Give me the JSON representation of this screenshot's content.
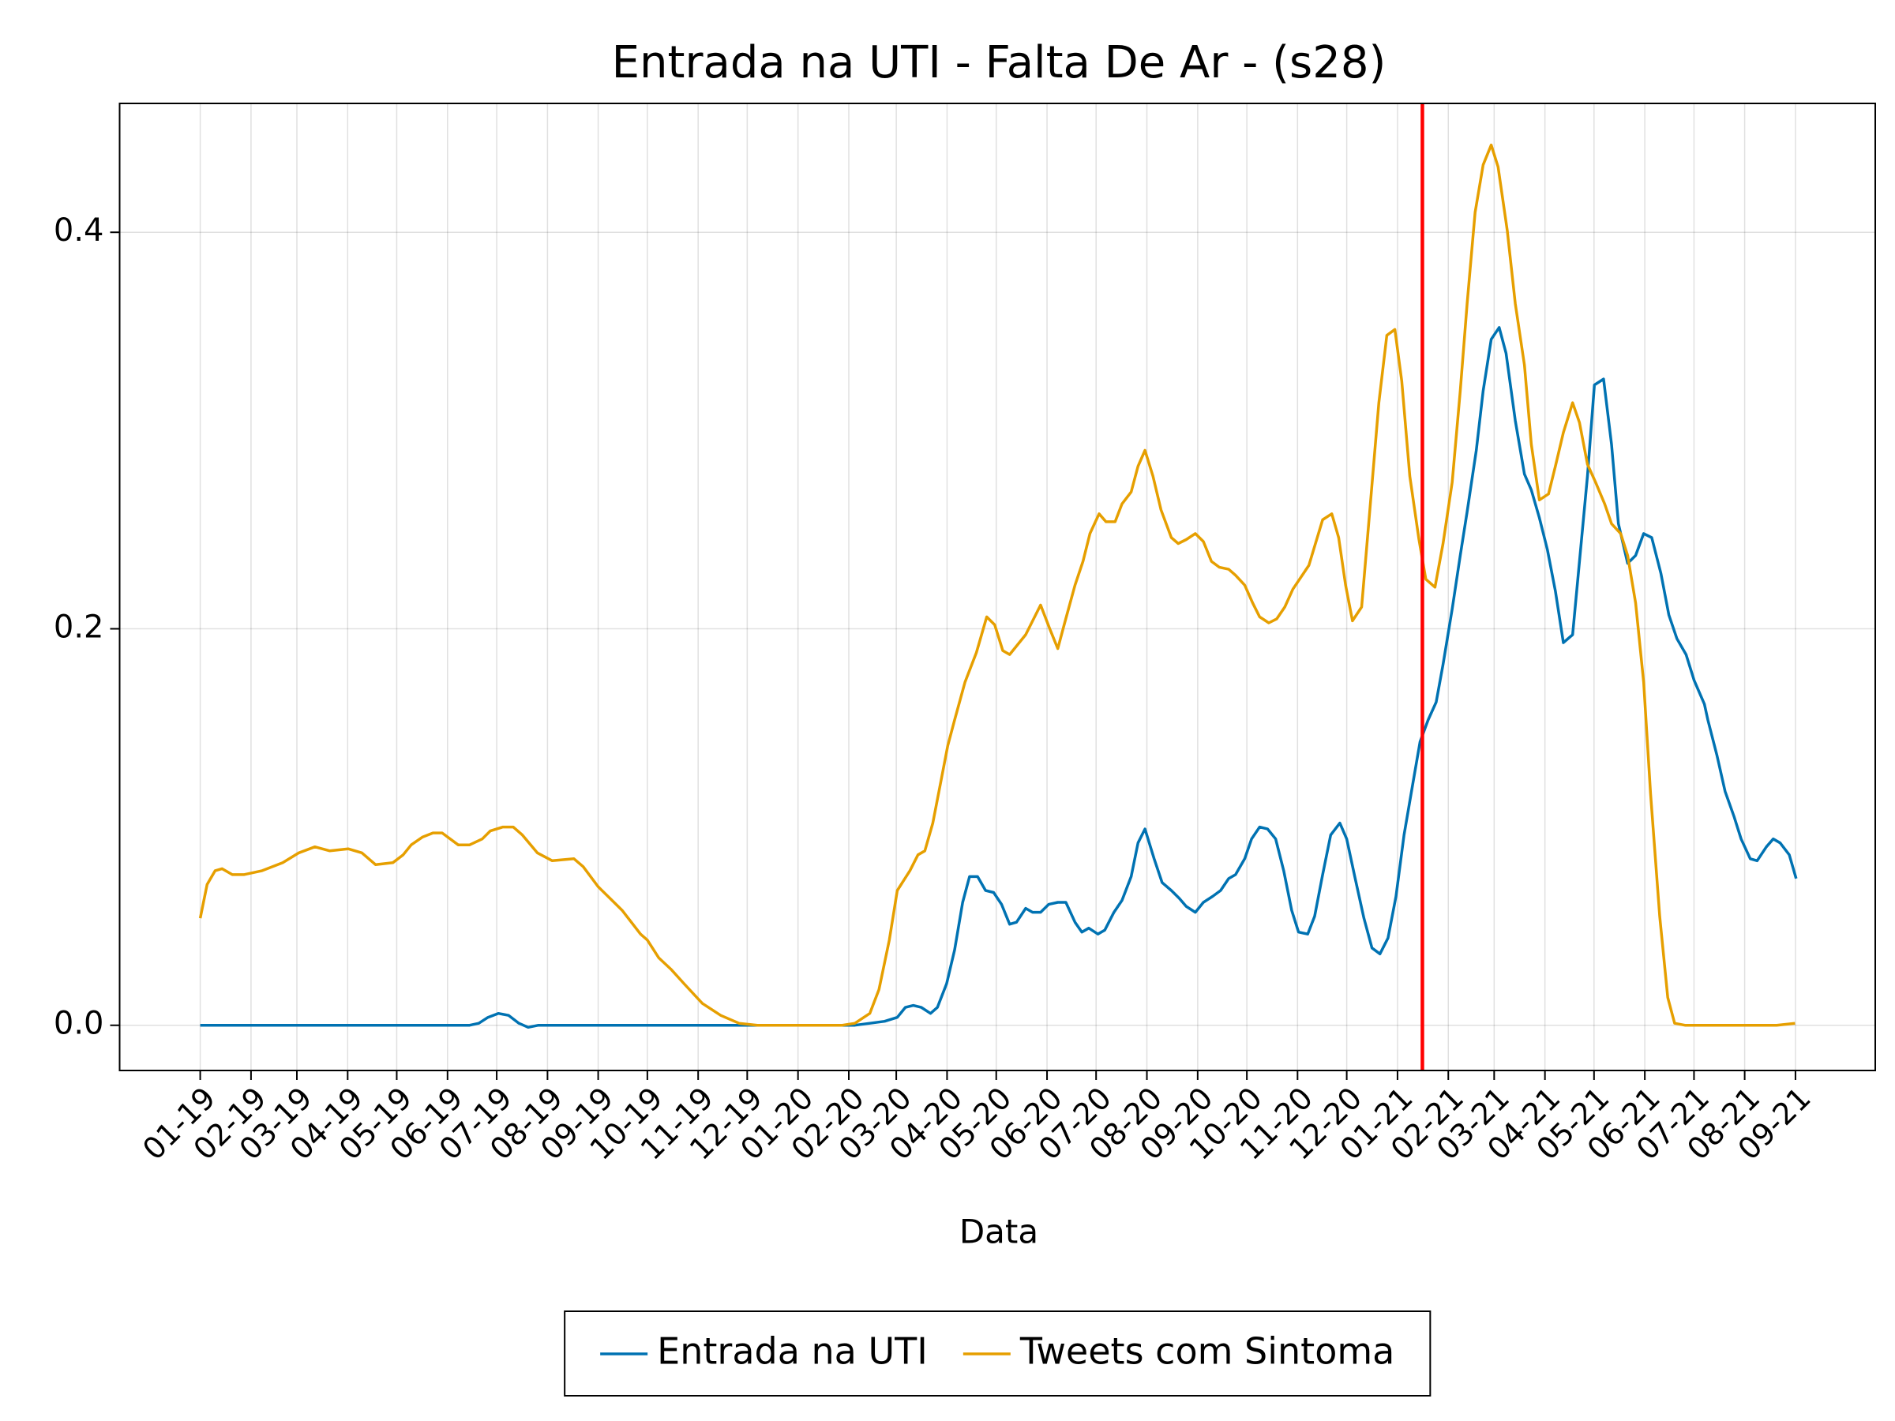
{
  "chart_data": {
    "type": "line",
    "title": "Entrada na UTI - Falta De Ar - (s28)",
    "x_label": "Data",
    "xlim": [
      -7.03,
      146.1
    ],
    "ylim": [
      -0.0228,
      0.465
    ],
    "xticks": [
      {
        "value": 0,
        "label": "01-19"
      },
      {
        "value": 4.43,
        "label": "02-19"
      },
      {
        "value": 8.43,
        "label": "03-19"
      },
      {
        "value": 12.86,
        "label": "04-19"
      },
      {
        "value": 17.14,
        "label": "05-19"
      },
      {
        "value": 21.57,
        "label": "06-19"
      },
      {
        "value": 25.86,
        "label": "07-19"
      },
      {
        "value": 30.29,
        "label": "08-19"
      },
      {
        "value": 34.71,
        "label": "09-19"
      },
      {
        "value": 39,
        "label": "10-19"
      },
      {
        "value": 43.43,
        "label": "11-19"
      },
      {
        "value": 47.71,
        "label": "12-19"
      },
      {
        "value": 52.14,
        "label": "01-20"
      },
      {
        "value": 56.57,
        "label": "02-20"
      },
      {
        "value": 60.71,
        "label": "03-20"
      },
      {
        "value": 65.14,
        "label": "04-20"
      },
      {
        "value": 69.43,
        "label": "05-20"
      },
      {
        "value": 73.86,
        "label": "06-20"
      },
      {
        "value": 78.14,
        "label": "07-20"
      },
      {
        "value": 82.57,
        "label": "08-20"
      },
      {
        "value": 87,
        "label": "09-20"
      },
      {
        "value": 91.29,
        "label": "10-20"
      },
      {
        "value": 95.71,
        "label": "11-20"
      },
      {
        "value": 100,
        "label": "12-20"
      },
      {
        "value": 104.43,
        "label": "01-21"
      },
      {
        "value": 108.86,
        "label": "02-21"
      },
      {
        "value": 112.86,
        "label": "03-21"
      },
      {
        "value": 117.29,
        "label": "04-21"
      },
      {
        "value": 121.57,
        "label": "05-21"
      },
      {
        "value": 126,
        "label": "06-21"
      },
      {
        "value": 130.29,
        "label": "07-21"
      },
      {
        "value": 134.71,
        "label": "08-21"
      },
      {
        "value": 139.14,
        "label": "09-21"
      }
    ],
    "yticks": [
      {
        "value": 0,
        "label": "0.0"
      },
      0.2,
      0.4
    ],
    "grid": true,
    "legend": "bottom",
    "vline": {
      "x": 106.6,
      "color": "#ff0000"
    },
    "series": [
      {
        "name": "Entrada na UTI",
        "color": "#0072b2",
        "x": [
          0,
          23.5,
          24.3,
          25.1,
          26.0,
          26.9,
          27.8,
          28.6,
          29.5,
          57.1,
          58.4,
          59.7,
          60.8,
          61.5,
          62.2,
          62.9,
          63.7,
          64.3,
          65.1,
          65.8,
          66.5,
          67.1,
          67.8,
          68.5,
          69.2,
          69.9,
          70.6,
          71.2,
          72.0,
          72.6,
          73.3,
          74.0,
          74.8,
          75.5,
          76.3,
          76.9,
          77.5,
          78.3,
          78.9,
          79.7,
          80.4,
          81.2,
          81.8,
          82.4,
          83.2,
          83.9,
          84.7,
          85.4,
          86.0,
          86.8,
          87.5,
          88.3,
          89.0,
          89.7,
          90.3,
          91.1,
          91.7,
          92.4,
          93.1,
          93.8,
          94.5,
          95.2,
          95.8,
          96.6,
          97.2,
          97.9,
          98.6,
          99.4,
          100.0,
          100.7,
          101.5,
          102.2,
          102.9,
          103.6,
          104.3,
          105.0,
          105.8,
          106.4,
          107.1,
          107.8,
          108.4,
          109.2,
          109.9,
          110.5,
          111.3,
          111.9,
          112.6,
          113.3,
          113.9,
          114.7,
          115.5,
          116.1,
          116.8,
          117.5,
          118.2,
          118.9,
          119.7,
          120.3,
          121.0,
          121.6,
          122.4,
          123.1,
          123.7,
          124.5,
          125.2,
          125.9,
          126.6,
          127.4,
          128.1,
          128.8,
          129.6,
          130.3,
          131.2,
          131.5,
          132.3,
          133.0,
          133.8,
          134.4,
          135.2,
          135.8,
          136.6,
          137.2,
          137.8,
          138.6,
          139.2
        ],
        "values": [
          0,
          0,
          0.001,
          0.004,
          0.006,
          0.005,
          0.001,
          -0.001,
          0,
          0,
          0.001,
          0.002,
          0.004,
          0.009,
          0.01,
          0.009,
          0.006,
          0.009,
          0.021,
          0.038,
          0.062,
          0.075,
          0.075,
          0.068,
          0.067,
          0.061,
          0.051,
          0.052,
          0.059,
          0.057,
          0.057,
          0.061,
          0.062,
          0.062,
          0.052,
          0.047,
          0.049,
          0.046,
          0.048,
          0.057,
          0.063,
          0.075,
          0.092,
          0.099,
          0.084,
          0.072,
          0.068,
          0.064,
          0.06,
          0.057,
          0.062,
          0.065,
          0.068,
          0.074,
          0.076,
          0.084,
          0.094,
          0.1,
          0.099,
          0.094,
          0.078,
          0.058,
          0.047,
          0.046,
          0.055,
          0.076,
          0.096,
          0.102,
          0.094,
          0.075,
          0.054,
          0.039,
          0.036,
          0.044,
          0.065,
          0.096,
          0.123,
          0.143,
          0.154,
          0.163,
          0.182,
          0.21,
          0.237,
          0.259,
          0.29,
          0.32,
          0.346,
          0.352,
          0.339,
          0.305,
          0.278,
          0.27,
          0.256,
          0.24,
          0.219,
          0.193,
          0.197,
          0.234,
          0.277,
          0.323,
          0.326,
          0.293,
          0.253,
          0.233,
          0.237,
          0.248,
          0.246,
          0.228,
          0.207,
          0.195,
          0.187,
          0.174,
          0.162,
          0.154,
          0.136,
          0.118,
          0.105,
          0.094,
          0.084,
          0.083,
          0.09,
          0.094,
          0.092,
          0.086,
          0.074
        ]
      },
      {
        "name": "Tweets com Sintoma",
        "color": "#e69f00",
        "x": [
          0,
          0.6,
          1.3,
          1.9,
          2.8,
          3.8,
          5.4,
          7.2,
          8.6,
          10.0,
          11.3,
          12.9,
          14.1,
          15.3,
          16.8,
          17.7,
          18.4,
          19.4,
          20.3,
          21.1,
          22.5,
          23.5,
          24.6,
          25.3,
          26.4,
          27.3,
          28.1,
          29.4,
          30.7,
          32.6,
          33.4,
          34.7,
          36.8,
          38.4,
          39.0,
          40.0,
          41.1,
          42.2,
          43.8,
          45.4,
          47.0,
          48.6,
          56.0,
          57.1,
          58.4,
          59.2,
          60.1,
          60.8,
          61.9,
          62.6,
          63.2,
          63.9,
          64.6,
          65.2,
          65.8,
          66.7,
          67.7,
          68.6,
          69.3,
          70.0,
          70.6,
          72.0,
          73.3,
          74.1,
          74.8,
          75.4,
          76.3,
          77.0,
          77.6,
          78.4,
          79.0,
          79.8,
          80.4,
          81.2,
          81.8,
          82.4,
          83.1,
          83.8,
          84.7,
          85.3,
          86.0,
          86.8,
          87.5,
          88.2,
          88.9,
          89.7,
          90.3,
          91.1,
          91.8,
          92.4,
          93.2,
          93.9,
          94.6,
          95.3,
          96.7,
          97.9,
          98.7,
          99.3,
          99.9,
          100.5,
          101.3,
          102.0,
          102.8,
          103.5,
          104.2,
          104.8,
          105.5,
          106.3,
          106.9,
          107.7,
          108.4,
          109.2,
          109.9,
          110.5,
          111.2,
          111.9,
          112.6,
          113.2,
          114.0,
          114.7,
          115.5,
          116.1,
          116.8,
          117.6,
          118.2,
          118.9,
          119.7,
          120.3,
          121.0,
          121.7,
          122.5,
          123.1,
          123.9,
          124.5,
          125.2,
          125.9,
          126.5,
          127.3,
          128.0,
          128.6,
          129.5,
          133.8,
          137.5,
          139.1
        ],
        "values": [
          0.054,
          0.071,
          0.078,
          0.079,
          0.076,
          0.076,
          0.078,
          0.082,
          0.087,
          0.09,
          0.088,
          0.089,
          0.087,
          0.081,
          0.082,
          0.086,
          0.091,
          0.095,
          0.097,
          0.097,
          0.091,
          0.091,
          0.094,
          0.098,
          0.1,
          0.1,
          0.096,
          0.087,
          0.083,
          0.084,
          0.08,
          0.07,
          0.058,
          0.046,
          0.043,
          0.034,
          0.028,
          0.021,
          0.011,
          0.005,
          0.001,
          0,
          0,
          0.001,
          0.006,
          0.018,
          0.043,
          0.068,
          0.078,
          0.086,
          0.088,
          0.102,
          0.123,
          0.141,
          0.154,
          0.173,
          0.188,
          0.206,
          0.202,
          0.189,
          0.187,
          0.197,
          0.212,
          0.2,
          0.19,
          0.203,
          0.222,
          0.234,
          0.248,
          0.258,
          0.254,
          0.254,
          0.263,
          0.269,
          0.282,
          0.29,
          0.277,
          0.26,
          0.246,
          0.243,
          0.245,
          0.248,
          0.244,
          0.234,
          0.231,
          0.23,
          0.227,
          0.222,
          0.213,
          0.206,
          0.203,
          0.205,
          0.211,
          0.22,
          0.232,
          0.255,
          0.258,
          0.246,
          0.222,
          0.204,
          0.211,
          0.259,
          0.314,
          0.348,
          0.351,
          0.325,
          0.277,
          0.245,
          0.225,
          0.221,
          0.243,
          0.274,
          0.32,
          0.364,
          0.41,
          0.434,
          0.444,
          0.433,
          0.401,
          0.364,
          0.333,
          0.293,
          0.265,
          0.268,
          0.282,
          0.299,
          0.314,
          0.304,
          0.283,
          0.274,
          0.263,
          0.253,
          0.248,
          0.237,
          0.213,
          0.173,
          0.117,
          0.055,
          0.014,
          0.001,
          0,
          0,
          0,
          0.001
        ]
      }
    ]
  }
}
